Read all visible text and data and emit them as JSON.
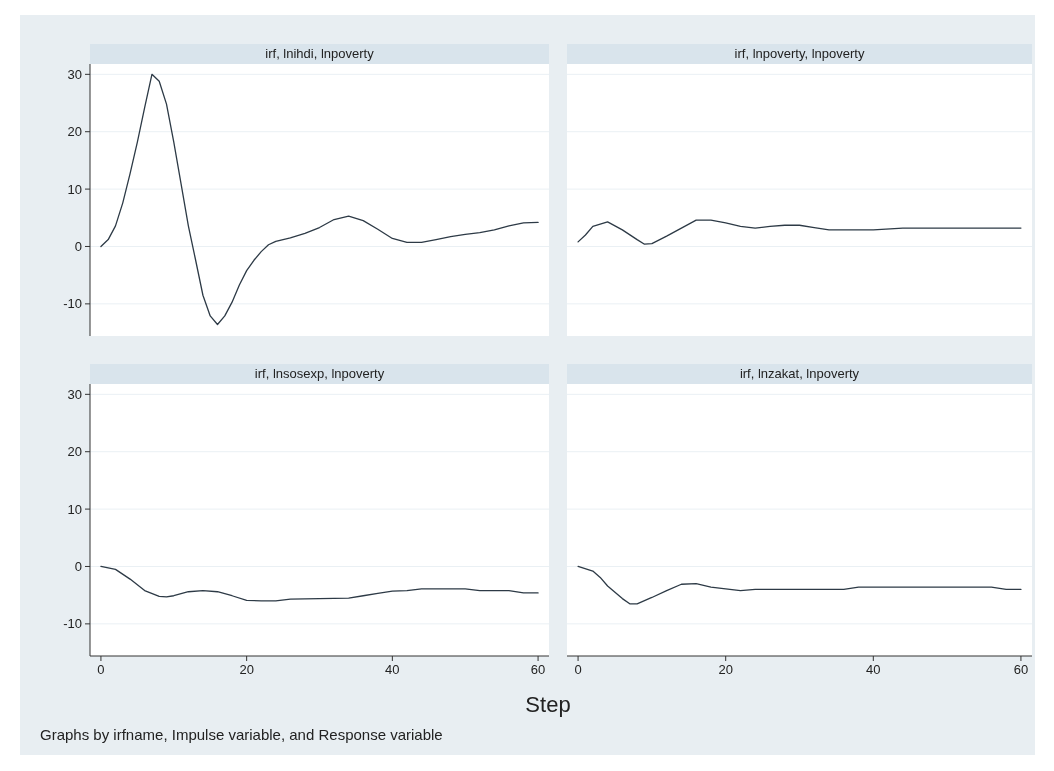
{
  "chart_data": [
    {
      "type": "line",
      "title": "irf, lnihdi, lnpoverty",
      "x": [
        0,
        1,
        2,
        3,
        4,
        5,
        6,
        7,
        8,
        9,
        10,
        11,
        12,
        13,
        14,
        15,
        16,
        17,
        18,
        19,
        20,
        21,
        22,
        23,
        24,
        26,
        28,
        30,
        32,
        34,
        36,
        38,
        40,
        42,
        44,
        46,
        48,
        50,
        52,
        54,
        56,
        58,
        60
      ],
      "series": [
        {
          "color": "#2d3a46",
          "values": [
            0,
            1.2,
            3.6,
            7.6,
            12.7,
            18.2,
            24.2,
            30,
            28.8,
            24.8,
            18.2,
            10.9,
            3.6,
            -2.4,
            -8.5,
            -12.1,
            -13.6,
            -12.1,
            -9.7,
            -6.7,
            -4.2,
            -2.4,
            -0.9,
            0.3,
            0.9,
            1.5,
            2.3,
            3.3,
            4.7,
            5.3,
            4.5,
            3,
            1.4,
            0.7,
            0.7,
            1.2,
            1.7,
            2.1,
            2.4,
            2.9,
            3.6,
            4.1,
            4.2
          ]
        }
      ],
      "xlim": [
        -1.5,
        61.5
      ],
      "ylim": [
        -15.6,
        31.8
      ],
      "yticks": [
        -10,
        0,
        10,
        20,
        30
      ],
      "grid": "y",
      "tick_labels": "y"
    },
    {
      "type": "line",
      "title": "irf, lnpoverty, lnpoverty",
      "x": [
        0,
        1,
        2,
        4,
        6,
        8,
        9,
        10,
        12,
        14,
        16,
        18,
        20,
        22,
        24,
        26,
        28,
        30,
        32,
        34,
        40,
        44,
        50,
        60
      ],
      "series": [
        {
          "color": "#2d3a46",
          "values": [
            0.8,
            2,
            3.5,
            4.3,
            2.9,
            1.2,
            0.4,
            0.5,
            1.8,
            3.2,
            4.6,
            4.6,
            4.1,
            3.5,
            3.2,
            3.5,
            3.7,
            3.7,
            3.3,
            2.9,
            2.9,
            3.2,
            3.2,
            3.2
          ]
        }
      ],
      "xlim": [
        -1.5,
        61.5
      ],
      "ylim": [
        -15.6,
        31.8
      ],
      "yticks": [
        -10,
        0,
        10,
        20,
        30
      ],
      "grid": "y",
      "tick_labels": false
    },
    {
      "type": "line",
      "title": "irf, lnsosexp, lnpoverty",
      "xlabel": "Step",
      "annotations": [
        "Graphs by irfname, Impulse variable, and Response variable"
      ],
      "x": [
        0,
        2,
        4,
        6,
        8,
        9,
        10,
        12,
        14,
        16,
        18,
        20,
        22,
        24,
        26,
        30,
        34,
        36,
        38,
        40,
        42,
        44,
        50,
        52,
        56,
        58,
        60
      ],
      "series": [
        {
          "color": "#2d3a46",
          "values": [
            0,
            -0.5,
            -2.2,
            -4.2,
            -5.2,
            -5.3,
            -5.1,
            -4.4,
            -4.2,
            -4.4,
            -5.1,
            -5.9,
            -6,
            -6,
            -5.7,
            -5.6,
            -5.5,
            -5.1,
            -4.7,
            -4.3,
            -4.2,
            -3.9,
            -3.9,
            -4.2,
            -4.2,
            -4.6,
            -4.6
          ]
        }
      ],
      "xlim": [
        -1.5,
        61.5
      ],
      "xticks": [
        0,
        20,
        40,
        60
      ],
      "ylim": [
        -15.6,
        31.8
      ],
      "yticks": [
        -10,
        0,
        10,
        20,
        30
      ],
      "grid": "y"
    },
    {
      "type": "line",
      "title": "irf, lnzakat, lnpoverty",
      "x": [
        0,
        2,
        3,
        4,
        6,
        7,
        8,
        10,
        12,
        14,
        16,
        18,
        20,
        22,
        24,
        30,
        36,
        38,
        50,
        56,
        58,
        60
      ],
      "series": [
        {
          "color": "#2d3a46",
          "values": [
            0,
            -0.8,
            -1.9,
            -3.4,
            -5.6,
            -6.5,
            -6.5,
            -5.4,
            -4.2,
            -3.1,
            -3,
            -3.6,
            -3.9,
            -4.2,
            -4,
            -4,
            -4,
            -3.6,
            -3.6,
            -3.6,
            -4,
            -4
          ]
        }
      ],
      "xlim": [
        -1.5,
        61.5
      ],
      "xticks": [
        0,
        20,
        40,
        60
      ],
      "ylim": [
        -15.6,
        31.8
      ],
      "yticks": [
        -10,
        0,
        10,
        20,
        30
      ],
      "grid": "y",
      "tick_labels": "x"
    }
  ]
}
